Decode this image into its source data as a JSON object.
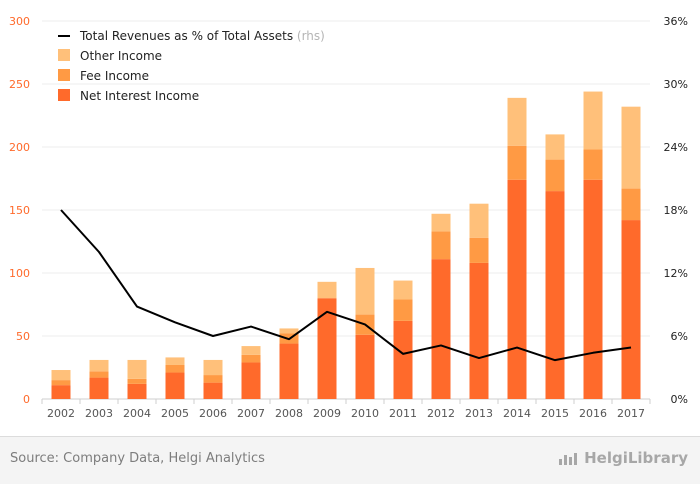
{
  "chart_data": {
    "type": "bar",
    "stacked": true,
    "categories": [
      "2002",
      "2003",
      "2004",
      "2005",
      "2006",
      "2007",
      "2008",
      "2009",
      "2010",
      "2011",
      "2012",
      "2013",
      "2014",
      "2015",
      "2016",
      "2017"
    ],
    "series": [
      {
        "name": "Net Interest Income",
        "color": "#ff6a2b",
        "values": [
          11,
          17,
          12,
          21,
          13,
          29,
          44,
          80,
          51,
          62,
          111,
          108,
          174,
          165,
          174,
          142
        ]
      },
      {
        "name": "Fee Income",
        "color": "#ff9a44",
        "values": [
          4,
          5,
          4,
          6,
          6,
          6,
          8,
          0,
          16,
          17,
          22,
          20,
          27,
          25,
          24,
          25
        ]
      },
      {
        "name": "Other Income",
        "color": "#ffc07a",
        "values": [
          8,
          9,
          15,
          6,
          12,
          7,
          4,
          13,
          37,
          15,
          14,
          27,
          38,
          20,
          46,
          65
        ]
      }
    ],
    "line": {
      "name": "Total Revenues as % of Total Assets",
      "suffix": "(rhs)",
      "color": "#000000",
      "values": [
        18.0,
        14.0,
        8.8,
        7.3,
        6.0,
        6.9,
        5.7,
        8.3,
        7.1,
        4.3,
        5.1,
        3.9,
        4.9,
        3.7,
        4.4,
        4.9
      ]
    },
    "y_left": {
      "lim": [
        0,
        300
      ],
      "ticks": [
        "0",
        "50",
        "100",
        "150",
        "200",
        "250",
        "300"
      ],
      "color": "#ff6a2b"
    },
    "y_right": {
      "lim": [
        0,
        36
      ],
      "ticks": [
        "0%",
        "6%",
        "12%",
        "18%",
        "24%",
        "30%",
        "36%"
      ],
      "color": "#222222"
    },
    "grid": true,
    "legend_position": "top-left"
  },
  "footer": {
    "source": "Source: Company Data, Helgi Analytics",
    "brand": "HelgiLibrary"
  }
}
